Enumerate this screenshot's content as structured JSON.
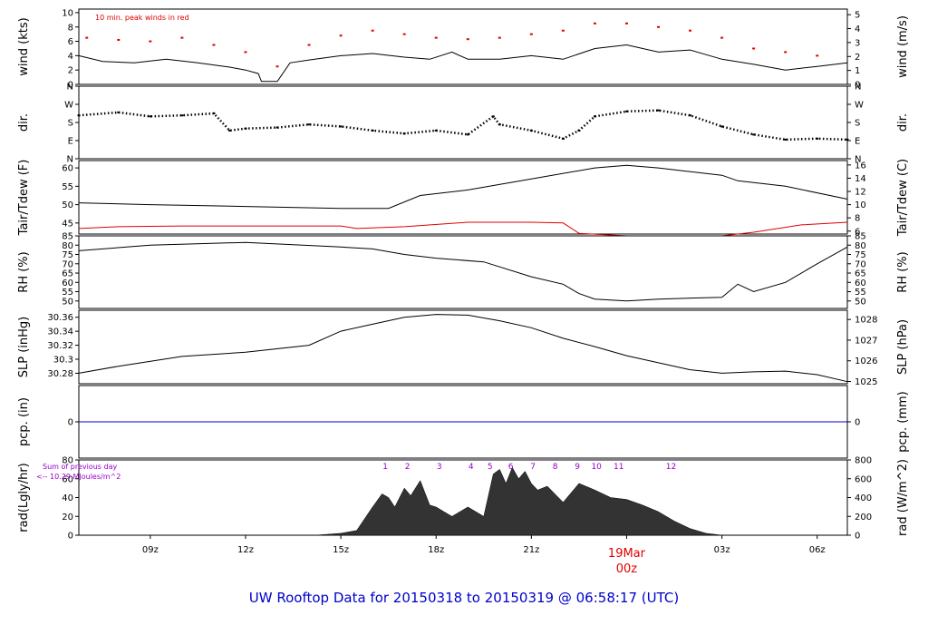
{
  "title": "UW Rooftop Data for 20150318  to  20150319 @ 06:58:17  (UTC)",
  "x_axis": {
    "tick_labels": [
      "09z",
      "12z",
      "15z",
      "18z",
      "21z",
      "03z",
      "06z"
    ],
    "tick_hours": [
      9,
      12,
      15,
      18,
      21,
      27,
      30
    ],
    "day_marker": {
      "label": "19Mar",
      "hour_label": "00z",
      "hour": 24
    },
    "range_hours": [
      6.75,
      30.95
    ]
  },
  "colors": {
    "black": "#000000",
    "red": "#e00000",
    "blue": "#0000cc",
    "purple": "#9900cc",
    "title": "#0000cc"
  },
  "chart_data": [
    {
      "type": "line",
      "id": "wind",
      "ylabel_left": "wind (kts)",
      "ylabel_right": "wind (m/s)",
      "ylim": [
        0,
        10.5
      ],
      "yticks_left": [
        0,
        2,
        4,
        6,
        8,
        10
      ],
      "yticks_right": [
        0,
        1,
        2,
        3,
        4,
        5
      ],
      "right_scale": "mps",
      "annotation": "10 min. peak winds in red",
      "series": [
        {
          "name": "wind",
          "color": "#000000",
          "x": [
            6.75,
            7.5,
            8.5,
            9.5,
            10.5,
            11.5,
            12,
            12.4,
            12.5,
            13,
            13.4,
            14,
            15,
            16,
            17,
            17.8,
            18.5,
            19,
            20,
            21,
            22,
            23,
            24,
            25,
            26,
            27,
            28,
            29,
            30,
            30.95
          ],
          "y": [
            4,
            3.2,
            3,
            3.5,
            3,
            2.4,
            2,
            1.5,
            0.4,
            0.4,
            3,
            3.4,
            4,
            4.3,
            3.8,
            3.5,
            4.5,
            3.5,
            3.5,
            4,
            3.5,
            5,
            5.5,
            4.5,
            4.8,
            3.5,
            2.8,
            2,
            2.5,
            3
          ]
        },
        {
          "name": "peak",
          "color": "#e00000",
          "mode": "markers",
          "x": [
            7,
            8,
            9,
            10,
            11,
            12,
            13,
            14,
            15,
            16,
            17,
            18,
            19,
            20,
            21,
            22,
            23,
            24,
            25,
            26,
            27,
            28,
            29,
            30
          ],
          "y": [
            6.5,
            6.2,
            6,
            6.5,
            5.5,
            4.5,
            2.5,
            5.5,
            6.8,
            7.5,
            7,
            6.5,
            6.3,
            6.5,
            7,
            7.5,
            8.5,
            8.5,
            8,
            7.5,
            6.5,
            5,
            4.5,
            4
          ]
        }
      ]
    },
    {
      "type": "scatter",
      "id": "dir",
      "ylabel_left": "dir.",
      "ylabel_right": "dir.",
      "ylim": [
        0,
        360
      ],
      "ytick_values": [
        0,
        90,
        180,
        270,
        360
      ],
      "ytick_labels": [
        "N",
        "E",
        "S",
        "W",
        "N"
      ],
      "series": [
        {
          "name": "direction",
          "color": "#000000",
          "x": [
            6.75,
            8,
            9,
            10,
            11,
            11.5,
            12,
            13,
            14,
            15,
            16,
            17,
            18,
            19,
            19.8,
            20,
            21,
            22,
            22.5,
            23,
            24,
            25,
            26,
            27,
            28,
            29,
            30,
            30.95
          ],
          "y": [
            215,
            230,
            210,
            215,
            225,
            140,
            150,
            155,
            170,
            160,
            140,
            125,
            140,
            120,
            210,
            170,
            140,
            100,
            140,
            210,
            235,
            240,
            215,
            160,
            120,
            95,
            100,
            95
          ]
        }
      ]
    },
    {
      "type": "line",
      "id": "temp",
      "ylabel_left": "Tair/Tdew (F)",
      "ylabel_right": "Tair/Tdew (C)",
      "ylim": [
        42,
        62
      ],
      "yticks_left": [
        45,
        50,
        55,
        60
      ],
      "yticks_right": [
        6,
        8,
        10,
        12,
        14,
        16
      ],
      "right_scale": "celsius",
      "series": [
        {
          "name": "Tair",
          "color": "#000000",
          "x": [
            6.75,
            9,
            12,
            15,
            16.5,
            17.5,
            19,
            21,
            23,
            24,
            25,
            26,
            27,
            27.5,
            29,
            30.95
          ],
          "y": [
            50.5,
            50,
            49.5,
            49,
            49,
            52.5,
            54,
            57,
            60,
            60.7,
            60,
            59,
            58,
            56.5,
            55,
            51.5
          ]
        },
        {
          "name": "Tdew",
          "color": "#e00000",
          "x": [
            6.75,
            8,
            10,
            12,
            15,
            15.5,
            17,
            19,
            21,
            22,
            22.5,
            24,
            26,
            27,
            28,
            29.5,
            30.95
          ],
          "y": [
            43.5,
            44,
            44.2,
            44.2,
            44.2,
            43.5,
            44,
            45.2,
            45.2,
            45,
            42.2,
            41.5,
            41.5,
            41.5,
            42.5,
            44.5,
            45.2
          ]
        }
      ]
    },
    {
      "type": "line",
      "id": "rh",
      "ylabel_left": "RH (%)",
      "ylabel_right": "RH (%)",
      "ylim": [
        46,
        85
      ],
      "yticks": [
        50,
        55,
        60,
        65,
        70,
        75,
        80,
        85
      ],
      "series": [
        {
          "name": "RH",
          "color": "#000000",
          "x": [
            6.75,
            9,
            12,
            15,
            16,
            17,
            18,
            19.5,
            21,
            22,
            22.5,
            23,
            24,
            25,
            27,
            27.5,
            28,
            29,
            30,
            30.95
          ],
          "y": [
            77,
            80,
            81.5,
            79,
            78,
            75,
            73,
            71,
            63,
            59,
            54,
            51,
            50,
            51,
            52,
            59,
            55,
            60,
            70,
            79
          ]
        }
      ]
    },
    {
      "type": "line",
      "id": "slp",
      "ylabel_left": "SLP (inHg)",
      "ylabel_right": "SLP (hPa)",
      "ylim": [
        30.265,
        30.37
      ],
      "yticks_left": [
        30.28,
        30.3,
        30.32,
        30.34,
        30.36
      ],
      "yticks_right": [
        1025,
        1026,
        1027,
        1028
      ],
      "right_scale": "hpa",
      "series": [
        {
          "name": "SLP",
          "color": "#000000",
          "x": [
            6.75,
            8,
            10,
            12,
            14,
            15,
            16,
            17,
            18,
            19,
            20,
            21,
            22,
            23,
            24,
            25,
            26,
            27,
            28,
            29,
            30,
            30.95
          ],
          "y": [
            30.28,
            30.29,
            30.304,
            30.31,
            30.32,
            30.34,
            30.35,
            30.36,
            30.364,
            30.363,
            30.355,
            30.345,
            30.33,
            30.318,
            30.305,
            30.295,
            30.285,
            30.28,
            30.282,
            30.283,
            30.278,
            30.268
          ]
        }
      ]
    },
    {
      "type": "line",
      "id": "pcp",
      "ylabel_left": "pcp. (in)",
      "ylabel_right": "pcp. (mm)",
      "ylim": [
        -1,
        1
      ],
      "yticks_left": [
        0
      ],
      "yticks_right": [
        0
      ],
      "series": [
        {
          "name": "pcp",
          "color": "#0000cc",
          "x": [
            6.75,
            30.95
          ],
          "y": [
            0,
            0
          ]
        }
      ]
    },
    {
      "type": "area",
      "id": "rad",
      "ylabel_left": "rad(Lgly/hr)",
      "ylabel_right": "rad (W/m^2)",
      "ylim": [
        0,
        80
      ],
      "yticks_left": [
        0,
        20,
        40,
        60,
        80
      ],
      "yticks_right": [
        0,
        200,
        400,
        600,
        800
      ],
      "right_scale": "wm2",
      "annotations": [
        "Sum of previous day",
        "<-- 10.29 MJoules/m^2"
      ],
      "hour_markers": {
        "labels": [
          "1",
          "2",
          "3",
          "4",
          "5",
          "6",
          "7",
          "8",
          "9",
          "10",
          "11",
          "12"
        ],
        "hours": [
          16.4,
          17.1,
          18.1,
          19.1,
          19.7,
          20.35,
          21.05,
          21.75,
          22.45,
          23.05,
          23.75,
          25.4
        ]
      },
      "series": [
        {
          "name": "radiation",
          "color": "#333333",
          "x": [
            6.75,
            14.2,
            15,
            15.5,
            16,
            16.3,
            16.5,
            16.7,
            17,
            17.2,
            17.5,
            17.8,
            18,
            18.5,
            19,
            19.5,
            19.8,
            20,
            20.2,
            20.4,
            20.6,
            20.8,
            21,
            21.2,
            21.5,
            22,
            22.5,
            23,
            23.5,
            24,
            24.5,
            25,
            25.5,
            26,
            26.5,
            27,
            30.95
          ],
          "y": [
            0,
            0,
            2,
            5,
            30,
            44,
            40,
            30,
            50,
            42,
            58,
            32,
            30,
            20,
            30,
            20,
            65,
            70,
            55,
            72,
            60,
            68,
            55,
            48,
            52,
            35,
            55,
            48,
            40,
            38,
            32,
            25,
            15,
            7,
            2,
            0,
            0
          ]
        }
      ]
    }
  ]
}
